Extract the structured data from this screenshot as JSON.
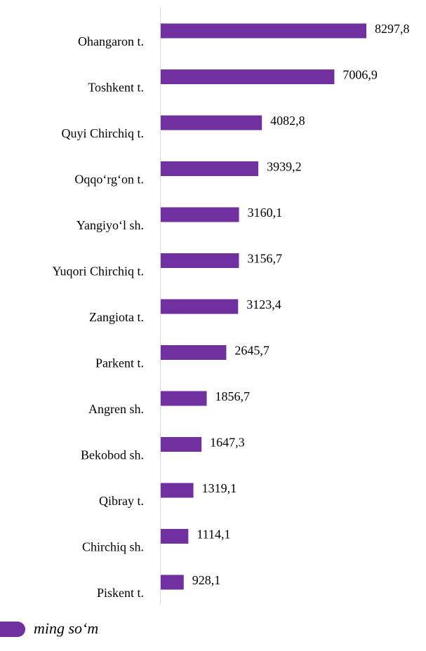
{
  "chart_data": {
    "type": "bar",
    "orientation": "horizontal",
    "categories": [
      "Ohangaron t.",
      "Toshkent t.",
      "Quyi Chirchiq t.",
      "Oqqo‘rg‘on t.",
      "Yangiyo‘l sh.",
      "Yuqori Chirchiq t.",
      "Zangiota t.",
      "Parkent t.",
      "Angren sh.",
      "Bekobod sh.",
      "Qibray t.",
      "Chirchiq sh.",
      "Piskent t."
    ],
    "series": [
      {
        "name": "ming so‘m",
        "color": "#7030a0",
        "values": [
          8297.8,
          7006.9,
          4082.8,
          3939.2,
          3160.1,
          3156.7,
          3123.4,
          2645.7,
          1856.7,
          1647.3,
          1319.1,
          1114.1,
          928.1
        ],
        "value_labels": [
          "8297,8",
          "7006,9",
          "4082,8",
          "3939,2",
          "3160,1",
          "3156,7",
          "3123,4",
          "2645,7",
          "1856,7",
          "1647,3",
          "1319,1",
          "1114,1",
          "928,1"
        ]
      }
    ],
    "legend": "bottom-left"
  }
}
